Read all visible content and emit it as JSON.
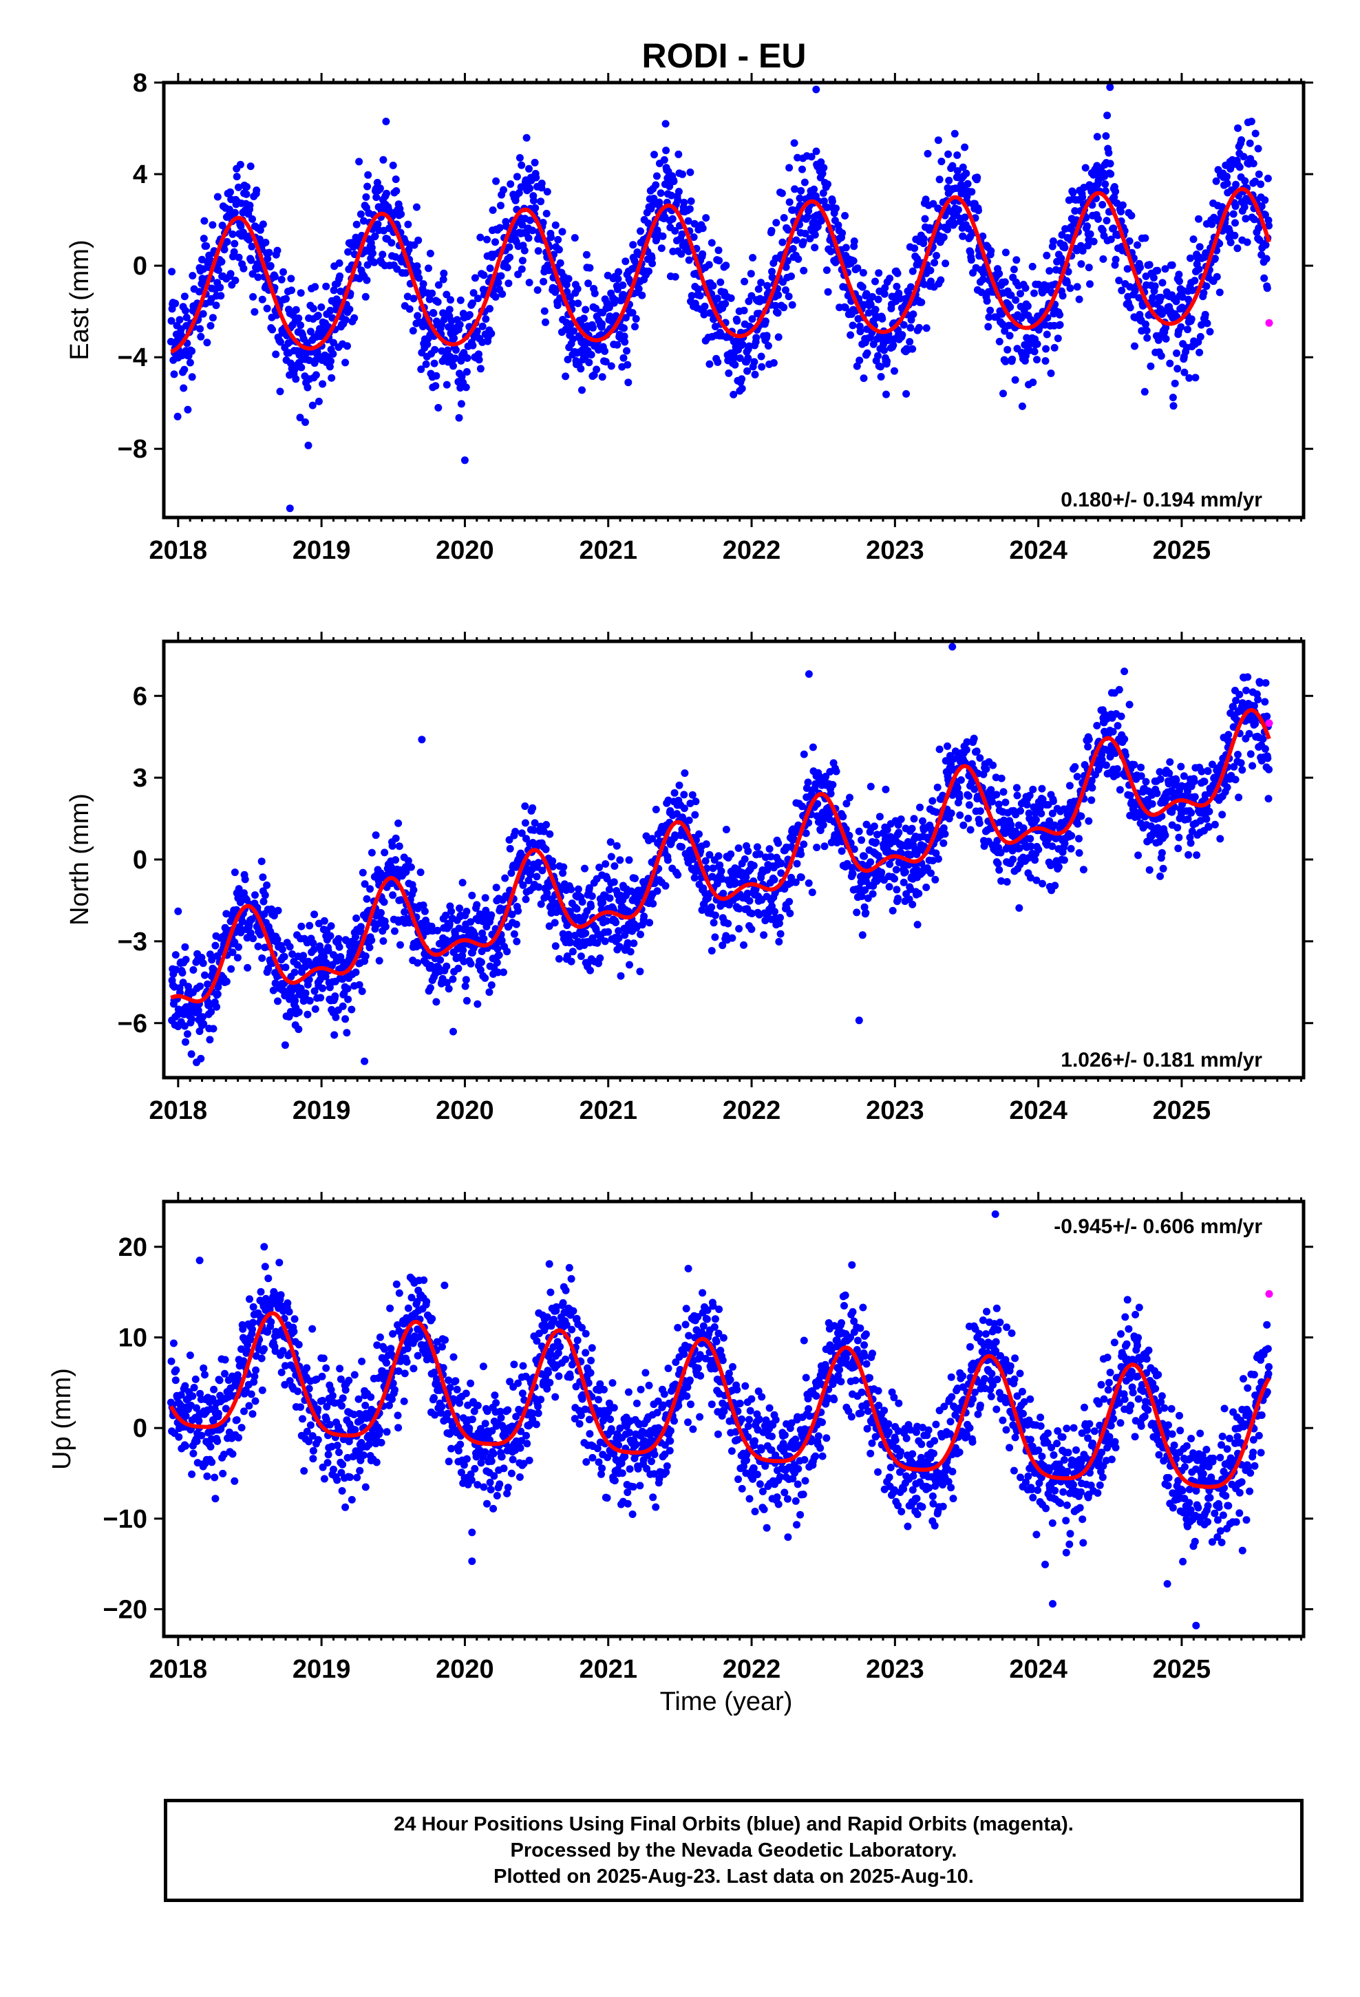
{
  "title": "RODI - EU",
  "xlabel": "Time (year)",
  "caption": [
    "24 Hour Positions Using Final Orbits (blue) and Rapid Orbits (magenta).",
    "Processed by the Nevada Geodetic Laboratory.",
    "Plotted on 2025-Aug-23. Last data on 2025-Aug-10."
  ],
  "colors": {
    "final": "#0000ff",
    "rapid": "#ff00ff",
    "fit": "#ff0000"
  },
  "chart_data": [
    {
      "type": "scatter",
      "id": "east",
      "ylabel": "East (mm)",
      "rate_text": "0.180+/- 0.194 mm/yr",
      "rate_position": "bottom-right",
      "xlim": [
        2017.9,
        2025.85
      ],
      "ylim": [
        -11,
        8
      ],
      "x_ticks": [
        2018,
        2019,
        2020,
        2021,
        2022,
        2023,
        2024,
        2025
      ],
      "y_ticks": [
        8,
        4,
        0,
        -4,
        -8
      ],
      "y_tick_labels": [
        "8",
        "4",
        "0",
        "−4",
        "−8"
      ],
      "fit": {
        "name": "fit",
        "start": 2017.95,
        "end": 2025.61,
        "ref": 2021.8,
        "offset": -0.5,
        "rate": 0.18,
        "annual_amp": 2.9,
        "annual_peak": 2018.42,
        "semiannual_amp": 0.3,
        "semiannual_peak": 2018.42
      },
      "scatter": {
        "name": "final orbits",
        "noise_sd": 1.3,
        "outliers": [
          [
            2018.78,
            -10.6
          ],
          [
            2019.45,
            6.3
          ],
          [
            2020.0,
            -8.5
          ],
          [
            2021.4,
            6.2
          ],
          [
            2022.45,
            7.7
          ],
          [
            2024.5,
            7.8
          ]
        ]
      },
      "rapid": [
        [
          2025.61,
          -2.5
        ]
      ]
    },
    {
      "type": "scatter",
      "id": "north",
      "ylabel": "North (mm)",
      "rate_text": "1.026+/- 0.181 mm/yr",
      "rate_position": "bottom-right",
      "xlim": [
        2017.9,
        2025.85
      ],
      "ylim": [
        -8,
        8
      ],
      "x_ticks": [
        2018,
        2019,
        2020,
        2021,
        2022,
        2023,
        2024,
        2025
      ],
      "y_ticks": [
        6,
        3,
        0,
        -3,
        -6
      ],
      "y_tick_labels": [
        "6",
        "3",
        "0",
        "−3",
        "−6"
      ],
      "fit": {
        "name": "fit",
        "start": 2017.95,
        "end": 2025.61,
        "ref": 2021.8,
        "offset": -0.4,
        "rate": 1.026,
        "annual_amp": 1.4,
        "annual_peak": 2018.48,
        "semiannual_amp": 0.7,
        "semiannual_peak": 2018.48
      },
      "scatter": {
        "name": "final orbits",
        "noise_sd": 0.9,
        "outliers": [
          [
            2018.0,
            -1.9
          ],
          [
            2019.7,
            4.4
          ],
          [
            2022.4,
            6.8
          ],
          [
            2022.75,
            -5.9
          ],
          [
            2023.4,
            7.8
          ],
          [
            2024.6,
            6.9
          ],
          [
            2019.3,
            -7.4
          ]
        ]
      },
      "rapid": [
        [
          2025.61,
          5.0
        ]
      ]
    },
    {
      "type": "scatter",
      "id": "up",
      "ylabel": "Up (mm)",
      "rate_text": "-0.945+/- 0.606 mm/yr",
      "rate_position": "top-right",
      "xlim": [
        2017.9,
        2025.85
      ],
      "ylim": [
        -23,
        25
      ],
      "x_ticks": [
        2018,
        2019,
        2020,
        2021,
        2022,
        2023,
        2024,
        2025
      ],
      "y_ticks": [
        20,
        10,
        0,
        -10,
        -20
      ],
      "y_tick_labels": [
        "20",
        "10",
        "0",
        "−10",
        "−20"
      ],
      "fit": {
        "name": "fit",
        "start": 2017.95,
        "end": 2025.61,
        "ref": 2021.8,
        "offset": 1.7,
        "rate": -0.945,
        "annual_amp": 6.5,
        "annual_peak": 2018.66,
        "semiannual_amp": 1.5,
        "semiannual_peak": 2018.66
      },
      "scatter": {
        "name": "final orbits",
        "noise_sd": 3.2,
        "outliers": [
          [
            2018.6,
            20.0
          ],
          [
            2018.15,
            18.5
          ],
          [
            2022.7,
            18.0
          ],
          [
            2023.7,
            23.6
          ],
          [
            2025.1,
            -21.8
          ],
          [
            2024.1,
            -19.4
          ],
          [
            2024.9,
            -17.2
          ],
          [
            2020.05,
            -14.7
          ]
        ]
      },
      "rapid": [
        [
          2025.61,
          14.8
        ]
      ]
    }
  ]
}
